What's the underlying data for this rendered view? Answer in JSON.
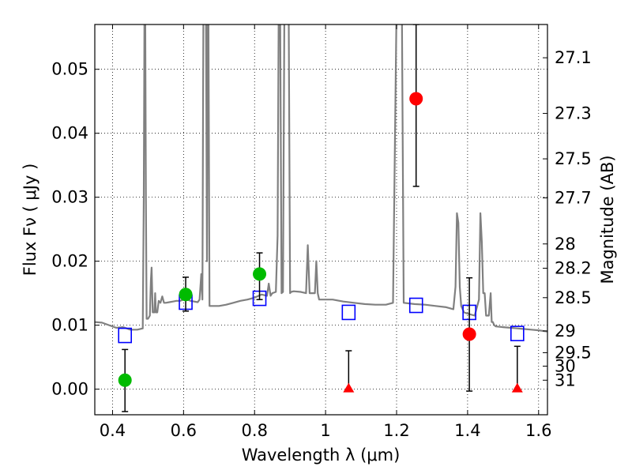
{
  "chart_data": {
    "type": "scatter",
    "xlabel": "Wavelength  λ (μm)",
    "ylabel_left": "Flux  Fν  ( μJy )",
    "ylabel_right": "Magnitude (AB)",
    "xlim": [
      0.35,
      1.625
    ],
    "ylim": [
      -0.004,
      0.057
    ],
    "grid": true,
    "x_ticks": [
      0.4,
      0.6,
      0.8,
      1.0,
      1.2,
      1.4,
      1.6
    ],
    "x_tick_labels": [
      "0.4",
      "0.6",
      "0.8",
      "1",
      "1.2",
      "1.4",
      "1.6"
    ],
    "y_ticks": [
      0.0,
      0.01,
      0.02,
      0.03,
      0.04,
      0.05
    ],
    "y_tick_labels": [
      "0.00",
      "0.01",
      "0.02",
      "0.03",
      "0.04",
      "0.05"
    ],
    "mag_ticks": [
      {
        "label": "27.1",
        "flux": 0.0518
      },
      {
        "label": "27.3",
        "flux": 0.0431
      },
      {
        "label": "27.5",
        "flux": 0.036
      },
      {
        "label": "27.7",
        "flux": 0.0299
      },
      {
        "label": "28",
        "flux": 0.0227
      },
      {
        "label": "28.2",
        "flux": 0.0189
      },
      {
        "label": "28.5",
        "flux": 0.0143
      },
      {
        "label": "29",
        "flux": 0.0091
      },
      {
        "label": "29.5",
        "flux": 0.0057
      },
      {
        "label": "30",
        "flux": 0.0036
      },
      {
        "label": "31",
        "flux": 0.0014
      }
    ],
    "colors": {
      "model": "#808080",
      "model_points": "#0000ff",
      "obs_green": "#00bb00",
      "obs_red": "#ff0000",
      "errorbar": "#000000"
    },
    "model_points": [
      {
        "x": 0.435,
        "y": 0.0084
      },
      {
        "x": 0.606,
        "y": 0.0136
      },
      {
        "x": 0.814,
        "y": 0.0142
      },
      {
        "x": 1.065,
        "y": 0.012
      },
      {
        "x": 1.255,
        "y": 0.0131
      },
      {
        "x": 1.405,
        "y": 0.012
      },
      {
        "x": 1.54,
        "y": 0.0087
      }
    ],
    "observed_detections": [
      {
        "x": 0.435,
        "y": 0.0014,
        "err_low": -0.0035,
        "err_high": 0.0062,
        "color": "green"
      },
      {
        "x": 0.606,
        "y": 0.0148,
        "err_low": 0.0122,
        "err_high": 0.0175,
        "color": "green"
      },
      {
        "x": 0.814,
        "y": 0.018,
        "err_low": 0.014,
        "err_high": 0.0213,
        "color": "green"
      },
      {
        "x": 1.255,
        "y": 0.0454,
        "err_low": 0.0317,
        "err_high": 0.057,
        "color": "red"
      },
      {
        "x": 1.405,
        "y": 0.0086,
        "err_low": -0.0003,
        "err_high": 0.0174,
        "color": "red"
      }
    ],
    "observed_upper_limits": [
      {
        "x": 1.065,
        "y": 0.0,
        "err_high": 0.006,
        "color": "red"
      },
      {
        "x": 1.54,
        "y": 0.0,
        "err_high": 0.0067,
        "color": "red"
      }
    ],
    "model_spectrum": {
      "x": [
        0.35,
        0.37,
        0.39,
        0.41,
        0.43,
        0.45,
        0.47,
        0.485,
        0.488,
        0.49,
        0.492,
        0.494,
        0.496,
        0.5,
        0.505,
        0.508,
        0.51,
        0.513,
        0.518,
        0.52,
        0.522,
        0.526,
        0.53,
        0.535,
        0.54,
        0.545,
        0.55,
        0.56,
        0.57,
        0.58,
        0.59,
        0.6,
        0.61,
        0.62,
        0.63,
        0.64,
        0.645,
        0.65,
        0.653,
        0.656,
        0.66,
        0.663,
        0.666,
        0.668,
        0.67,
        0.673,
        0.68,
        0.7,
        0.72,
        0.74,
        0.76,
        0.78,
        0.8,
        0.82,
        0.835,
        0.84,
        0.845,
        0.85,
        0.86,
        0.865,
        0.868,
        0.87,
        0.872,
        0.876,
        0.88,
        0.884,
        0.888,
        0.892,
        0.896,
        0.9,
        0.903,
        0.91,
        0.93,
        0.945,
        0.95,
        0.955,
        0.96,
        0.97,
        0.974,
        0.978,
        0.982,
        0.99,
        1.02,
        1.05,
        1.08,
        1.11,
        1.14,
        1.17,
        1.19,
        1.2,
        1.203,
        1.206,
        1.209,
        1.212,
        1.215,
        1.22,
        1.25,
        1.28,
        1.31,
        1.34,
        1.36,
        1.366,
        1.37,
        1.374,
        1.378,
        1.382,
        1.39,
        1.4,
        1.42,
        1.432,
        1.436,
        1.44,
        1.444,
        1.448,
        1.452,
        1.46,
        1.465,
        1.468,
        1.471,
        1.475,
        1.48,
        1.5,
        1.52,
        1.54,
        1.56,
        1.58,
        1.6,
        1.625
      ],
      "y": [
        0.0105,
        0.0104,
        0.01,
        0.0096,
        0.0097,
        0.0093,
        0.0093,
        0.0095,
        0.03,
        0.06,
        0.06,
        0.03,
        0.011,
        0.011,
        0.0115,
        0.017,
        0.019,
        0.012,
        0.012,
        0.015,
        0.012,
        0.012,
        0.0138,
        0.0135,
        0.0145,
        0.0135,
        0.0135,
        0.0136,
        0.0137,
        0.0138,
        0.0138,
        0.014,
        0.014,
        0.0138,
        0.0137,
        0.0136,
        0.014,
        0.018,
        0.014,
        0.06,
        0.06,
        0.06,
        0.02,
        0.06,
        0.06,
        0.013,
        0.013,
        0.013,
        0.0132,
        0.0135,
        0.0138,
        0.014,
        0.0143,
        0.0148,
        0.0146,
        0.0165,
        0.0146,
        0.015,
        0.0152,
        0.024,
        0.06,
        0.06,
        0.06,
        0.015,
        0.0152,
        0.06,
        0.06,
        0.06,
        0.06,
        0.015,
        0.0152,
        0.0153,
        0.0152,
        0.015,
        0.0225,
        0.015,
        0.015,
        0.015,
        0.02,
        0.015,
        0.014,
        0.014,
        0.014,
        0.0137,
        0.0135,
        0.0133,
        0.0132,
        0.0132,
        0.0135,
        0.06,
        0.06,
        0.06,
        0.06,
        0.06,
        0.06,
        0.0135,
        0.0133,
        0.0132,
        0.013,
        0.0128,
        0.0125,
        0.016,
        0.0275,
        0.026,
        0.016,
        0.013,
        0.012,
        0.0118,
        0.0115,
        0.014,
        0.0275,
        0.023,
        0.015,
        0.015,
        0.0115,
        0.0115,
        0.015,
        0.0105,
        0.0105,
        0.01,
        0.0098,
        0.0097,
        0.0096,
        0.0095,
        0.0094,
        0.0093,
        0.0092,
        0.009
      ]
    }
  }
}
